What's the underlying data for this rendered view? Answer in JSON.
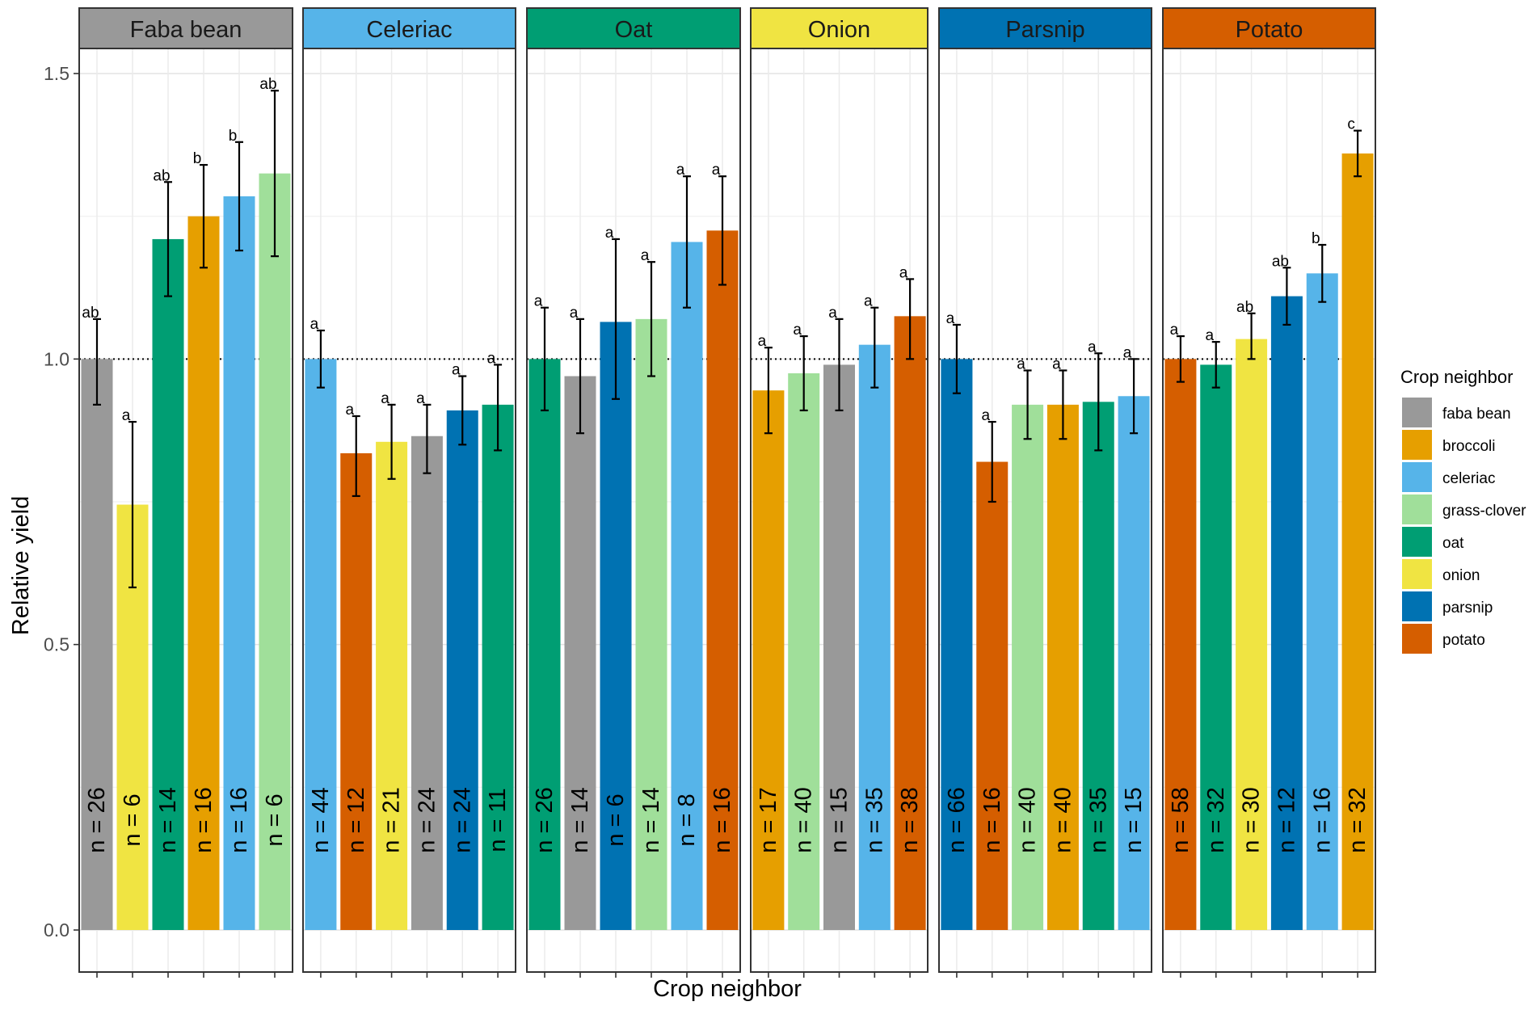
{
  "chart_data": {
    "type": "bar",
    "title": "",
    "xlabel": "Crop neighbor",
    "ylabel": "Relative yield",
    "ylim": [
      0,
      1.5
    ],
    "yticks": [
      0.0,
      0.5,
      1.0,
      1.5
    ],
    "ytick_labels": [
      "0.0",
      "0.5",
      "1.0",
      "1.5"
    ],
    "reference_line": 1.0,
    "legend": {
      "title": "Crop neighbor",
      "position": "right",
      "items": [
        {
          "label": "faba bean",
          "color": "#999999"
        },
        {
          "label": "broccoli",
          "color": "#E69F00"
        },
        {
          "label": "celeriac",
          "color": "#56B4E9"
        },
        {
          "label": "grass-clover",
          "color": "#A0DF9A"
        },
        {
          "label": "oat",
          "color": "#009E73"
        },
        {
          "label": "onion",
          "color": "#F0E442"
        },
        {
          "label": "parsnip",
          "color": "#0072B2"
        },
        {
          "label": "potato",
          "color": "#D55E00"
        }
      ]
    },
    "panels": [
      {
        "name": "Faba bean",
        "color": "#999999",
        "bars": [
          {
            "neighbor": "faba bean",
            "value": 1.0,
            "lo": 0.92,
            "hi": 1.07,
            "letter": "ab",
            "n": "n = 26"
          },
          {
            "neighbor": "onion",
            "value": 0.745,
            "lo": 0.6,
            "hi": 0.89,
            "letter": "a",
            "n": "n = 6"
          },
          {
            "neighbor": "oat",
            "value": 1.21,
            "lo": 1.11,
            "hi": 1.31,
            "letter": "ab",
            "n": "n = 14"
          },
          {
            "neighbor": "broccoli",
            "value": 1.25,
            "lo": 1.16,
            "hi": 1.34,
            "letter": "b",
            "n": "n = 16"
          },
          {
            "neighbor": "celeriac",
            "value": 1.285,
            "lo": 1.19,
            "hi": 1.38,
            "letter": "b",
            "n": "n = 16"
          },
          {
            "neighbor": "grass-clover",
            "value": 1.325,
            "lo": 1.18,
            "hi": 1.47,
            "letter": "ab",
            "n": "n = 6"
          }
        ]
      },
      {
        "name": "Celeriac",
        "color": "#56B4E9",
        "bars": [
          {
            "neighbor": "celeriac",
            "value": 1.0,
            "lo": 0.95,
            "hi": 1.05,
            "letter": "a",
            "n": "n = 44"
          },
          {
            "neighbor": "potato",
            "value": 0.835,
            "lo": 0.76,
            "hi": 0.9,
            "letter": "a",
            "n": "n = 12"
          },
          {
            "neighbor": "onion",
            "value": 0.855,
            "lo": 0.79,
            "hi": 0.92,
            "letter": "a",
            "n": "n = 21"
          },
          {
            "neighbor": "faba bean",
            "value": 0.865,
            "lo": 0.8,
            "hi": 0.92,
            "letter": "a",
            "n": "n = 24"
          },
          {
            "neighbor": "parsnip",
            "value": 0.91,
            "lo": 0.85,
            "hi": 0.97,
            "letter": "a",
            "n": "n = 24"
          },
          {
            "neighbor": "oat",
            "value": 0.92,
            "lo": 0.84,
            "hi": 0.99,
            "letter": "a",
            "n": "n = 11"
          }
        ]
      },
      {
        "name": "Oat",
        "color": "#009E73",
        "bars": [
          {
            "neighbor": "oat",
            "value": 1.0,
            "lo": 0.91,
            "hi": 1.09,
            "letter": "a",
            "n": "n = 26"
          },
          {
            "neighbor": "faba bean",
            "value": 0.97,
            "lo": 0.87,
            "hi": 1.07,
            "letter": "a",
            "n": "n = 14"
          },
          {
            "neighbor": "parsnip",
            "value": 1.065,
            "lo": 0.93,
            "hi": 1.21,
            "letter": "a",
            "n": "n = 6"
          },
          {
            "neighbor": "grass-clover",
            "value": 1.07,
            "lo": 0.97,
            "hi": 1.17,
            "letter": "a",
            "n": "n = 14"
          },
          {
            "neighbor": "celeriac",
            "value": 1.205,
            "lo": 1.09,
            "hi": 1.32,
            "letter": "a",
            "n": "n = 8"
          },
          {
            "neighbor": "potato",
            "value": 1.225,
            "lo": 1.13,
            "hi": 1.32,
            "letter": "a",
            "n": "n = 16"
          }
        ]
      },
      {
        "name": "Onion",
        "color": "#F0E442",
        "bars": [
          {
            "neighbor": "broccoli",
            "value": 0.945,
            "lo": 0.87,
            "hi": 1.02,
            "letter": "a",
            "n": "n = 17"
          },
          {
            "neighbor": "grass-clover",
            "value": 0.975,
            "lo": 0.91,
            "hi": 1.04,
            "letter": "a",
            "n": "n = 40"
          },
          {
            "neighbor": "faba bean",
            "value": 0.99,
            "lo": 0.91,
            "hi": 1.07,
            "letter": "a",
            "n": "n = 15"
          },
          {
            "neighbor": "celeriac",
            "value": 1.025,
            "lo": 0.95,
            "hi": 1.09,
            "letter": "a",
            "n": "n = 35"
          },
          {
            "neighbor": "potato",
            "value": 1.075,
            "lo": 1.0,
            "hi": 1.14,
            "letter": "a",
            "n": "n = 38"
          }
        ]
      },
      {
        "name": "Parsnip",
        "color": "#0072B2",
        "bars": [
          {
            "neighbor": "parsnip",
            "value": 1.0,
            "lo": 0.94,
            "hi": 1.06,
            "letter": "a",
            "n": "n = 66"
          },
          {
            "neighbor": "potato",
            "value": 0.82,
            "lo": 0.75,
            "hi": 0.89,
            "letter": "a",
            "n": "n = 16"
          },
          {
            "neighbor": "grass-clover",
            "value": 0.92,
            "lo": 0.86,
            "hi": 0.98,
            "letter": "a",
            "n": "n = 40"
          },
          {
            "neighbor": "broccoli",
            "value": 0.92,
            "lo": 0.86,
            "hi": 0.98,
            "letter": "a",
            "n": "n = 40"
          },
          {
            "neighbor": "oat",
            "value": 0.925,
            "lo": 0.84,
            "hi": 1.01,
            "letter": "a",
            "n": "n = 35"
          },
          {
            "neighbor": "celeriac",
            "value": 0.935,
            "lo": 0.87,
            "hi": 1.0,
            "letter": "a",
            "n": "n = 15"
          }
        ]
      },
      {
        "name": "Potato",
        "color": "#D55E00",
        "bars": [
          {
            "neighbor": "potato",
            "value": 1.0,
            "lo": 0.96,
            "hi": 1.04,
            "letter": "a",
            "n": "n = 58"
          },
          {
            "neighbor": "oat",
            "value": 0.99,
            "lo": 0.95,
            "hi": 1.03,
            "letter": "a",
            "n": "n = 32"
          },
          {
            "neighbor": "onion",
            "value": 1.035,
            "lo": 1.0,
            "hi": 1.08,
            "letter": "ab",
            "n": "n = 30"
          },
          {
            "neighbor": "parsnip",
            "value": 1.11,
            "lo": 1.06,
            "hi": 1.16,
            "letter": "ab",
            "n": "n = 12"
          },
          {
            "neighbor": "celeriac",
            "value": 1.15,
            "lo": 1.1,
            "hi": 1.2,
            "letter": "b",
            "n": "n = 16"
          },
          {
            "neighbor": "broccoli",
            "value": 1.36,
            "lo": 1.32,
            "hi": 1.4,
            "letter": "c",
            "n": "n = 32"
          }
        ]
      }
    ]
  }
}
